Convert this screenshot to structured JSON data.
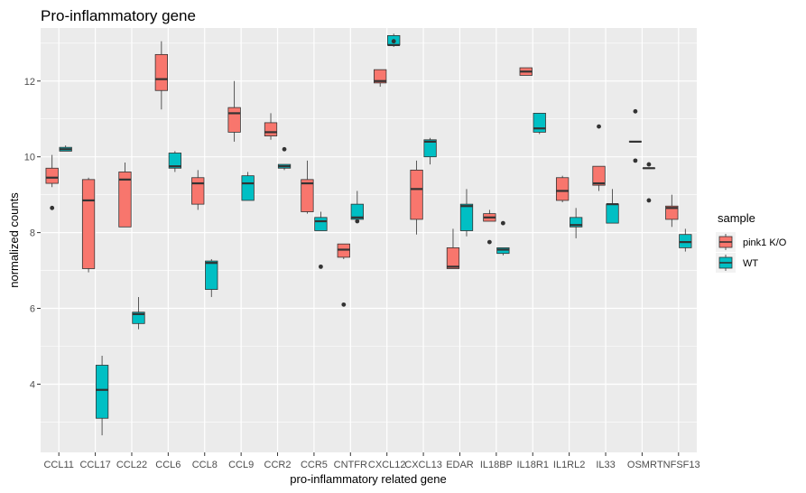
{
  "chart_data": {
    "type": "box",
    "title": "Pro-inflammatory gene",
    "xlabel": "pro-inflammatory related gene",
    "ylabel": "normalized counts",
    "ylim": [
      2.2,
      13.4
    ],
    "yticks": [
      4,
      6,
      8,
      10,
      12
    ],
    "grid": true,
    "legend": {
      "title": "sample",
      "position": "right"
    },
    "categories": [
      "CCL11",
      "CCL17",
      "CCL22",
      "CCL6",
      "CCL8",
      "CCL9",
      "CCR2",
      "CCR5",
      "CNTFR",
      "CXCL12",
      "CXCL13",
      "EDAR",
      "IL18BP",
      "IL18R1",
      "IL1RL2",
      "IL33",
      "OSMR",
      "TNFSF13"
    ],
    "series": [
      {
        "name": "pink1 K/O",
        "color": "#F8766D",
        "boxes": [
          {
            "category": "CCL11",
            "min": 9.2,
            "q1": 9.3,
            "median": 9.45,
            "q3": 9.7,
            "max": 10.05,
            "outliers": [
              8.65
            ]
          },
          {
            "category": "CCL17",
            "min": 6.95,
            "q1": 7.05,
            "median": 8.85,
            "q3": 9.4,
            "max": 9.45,
            "outliers": []
          },
          {
            "category": "CCL22",
            "min": 8.15,
            "q1": 8.15,
            "median": 9.4,
            "q3": 9.6,
            "max": 9.85,
            "outliers": []
          },
          {
            "category": "CCL6",
            "min": 11.25,
            "q1": 11.75,
            "median": 12.05,
            "q3": 12.7,
            "max": 13.05,
            "outliers": []
          },
          {
            "category": "CCL8",
            "min": 8.6,
            "q1": 8.75,
            "median": 9.3,
            "q3": 9.45,
            "max": 9.65,
            "outliers": []
          },
          {
            "category": "CCL9",
            "min": 10.4,
            "q1": 10.65,
            "median": 11.15,
            "q3": 11.3,
            "max": 12.0,
            "outliers": []
          },
          {
            "category": "CCR2",
            "min": 10.45,
            "q1": 10.55,
            "median": 10.65,
            "q3": 10.9,
            "max": 11.15,
            "outliers": []
          },
          {
            "category": "CCR5",
            "min": 8.5,
            "q1": 8.55,
            "median": 9.3,
            "q3": 9.4,
            "max": 9.9,
            "outliers": []
          },
          {
            "category": "CNTFR",
            "min": 7.3,
            "q1": 7.35,
            "median": 7.55,
            "q3": 7.7,
            "max": 7.7,
            "outliers": [
              6.1
            ]
          },
          {
            "category": "CXCL12",
            "min": 11.85,
            "q1": 11.95,
            "median": 12.0,
            "q3": 12.3,
            "max": 12.3,
            "outliers": []
          },
          {
            "category": "CXCL13",
            "min": 7.95,
            "q1": 8.35,
            "median": 9.15,
            "q3": 9.65,
            "max": 9.9,
            "outliers": []
          },
          {
            "category": "EDAR",
            "min": 7.05,
            "q1": 7.05,
            "median": 7.1,
            "q3": 7.6,
            "max": 8.1,
            "outliers": []
          },
          {
            "category": "IL18BP",
            "min": 8.3,
            "q1": 8.3,
            "median": 8.4,
            "q3": 8.5,
            "max": 8.6,
            "outliers": [
              7.75
            ]
          },
          {
            "category": "IL18R1",
            "min": 12.15,
            "q1": 12.15,
            "median": 12.25,
            "q3": 12.35,
            "max": 12.35,
            "outliers": []
          },
          {
            "category": "IL1RL2",
            "min": 8.8,
            "q1": 8.85,
            "median": 9.1,
            "q3": 9.45,
            "max": 9.5,
            "outliers": []
          },
          {
            "category": "IL33",
            "min": 9.1,
            "q1": 9.25,
            "median": 9.3,
            "q3": 9.75,
            "max": 9.75,
            "outliers": [
              10.8
            ]
          },
          {
            "category": "OSMR",
            "min": 10.4,
            "q1": 10.4,
            "median": 10.4,
            "q3": 10.4,
            "max": 10.4,
            "outliers": [
              11.2,
              9.9
            ]
          },
          {
            "category": "TNFSF13",
            "min": 8.15,
            "q1": 8.35,
            "median": 8.65,
            "q3": 8.7,
            "max": 9.0,
            "outliers": []
          }
        ]
      },
      {
        "name": "WT",
        "color": "#00BFC4",
        "boxes": [
          {
            "category": "CCL11",
            "min": 10.15,
            "q1": 10.15,
            "median": 10.2,
            "q3": 10.25,
            "max": 10.3,
            "outliers": []
          },
          {
            "category": "CCL17",
            "min": 2.65,
            "q1": 3.1,
            "median": 3.85,
            "q3": 4.5,
            "max": 4.75,
            "outliers": []
          },
          {
            "category": "CCL22",
            "min": 5.45,
            "q1": 5.6,
            "median": 5.85,
            "q3": 5.9,
            "max": 6.3,
            "outliers": []
          },
          {
            "category": "CCL6",
            "min": 9.6,
            "q1": 9.7,
            "median": 9.75,
            "q3": 10.1,
            "max": 10.15,
            "outliers": []
          },
          {
            "category": "CCL8",
            "min": 6.3,
            "q1": 6.5,
            "median": 7.2,
            "q3": 7.25,
            "max": 7.3,
            "outliers": []
          },
          {
            "category": "CCL9",
            "min": 8.85,
            "q1": 8.85,
            "median": 9.3,
            "q3": 9.5,
            "max": 9.6,
            "outliers": []
          },
          {
            "category": "CCR2",
            "min": 9.65,
            "q1": 9.7,
            "median": 9.75,
            "q3": 9.8,
            "max": 9.8,
            "outliers": [
              10.2
            ]
          },
          {
            "category": "CCR5",
            "min": 8.05,
            "q1": 8.05,
            "median": 8.3,
            "q3": 8.4,
            "max": 8.55,
            "outliers": [
              7.1
            ]
          },
          {
            "category": "CNTFR",
            "min": 8.35,
            "q1": 8.35,
            "median": 8.4,
            "q3": 8.75,
            "max": 9.1,
            "outliers": [
              8.3
            ]
          },
          {
            "category": "CXCL12",
            "min": 12.9,
            "q1": 12.95,
            "median": 12.95,
            "q3": 13.2,
            "max": 13.25,
            "outliers": [
              13.05
            ]
          },
          {
            "category": "CXCL13",
            "min": 9.8,
            "q1": 10.0,
            "median": 10.4,
            "q3": 10.45,
            "max": 10.5,
            "outliers": []
          },
          {
            "category": "EDAR",
            "min": 7.9,
            "q1": 8.05,
            "median": 8.7,
            "q3": 8.75,
            "max": 9.15,
            "outliers": []
          },
          {
            "category": "IL18BP",
            "min": 7.4,
            "q1": 7.45,
            "median": 7.55,
            "q3": 7.6,
            "max": 7.6,
            "outliers": [
              8.25
            ]
          },
          {
            "category": "IL18R1",
            "min": 10.6,
            "q1": 10.65,
            "median": 10.75,
            "q3": 11.15,
            "max": 11.15,
            "outliers": []
          },
          {
            "category": "IL1RL2",
            "min": 7.85,
            "q1": 8.15,
            "median": 8.2,
            "q3": 8.4,
            "max": 8.65,
            "outliers": []
          },
          {
            "category": "IL33",
            "min": 8.25,
            "q1": 8.25,
            "median": 8.75,
            "q3": 8.75,
            "max": 9.15,
            "outliers": []
          },
          {
            "category": "OSMR",
            "min": 9.7,
            "q1": 9.7,
            "median": 9.7,
            "q3": 9.7,
            "max": 9.7,
            "outliers": [
              9.8,
              8.85
            ]
          },
          {
            "category": "TNFSF13",
            "min": 7.5,
            "q1": 7.6,
            "median": 7.75,
            "q3": 7.95,
            "max": 8.1,
            "outliers": []
          }
        ]
      }
    ]
  }
}
